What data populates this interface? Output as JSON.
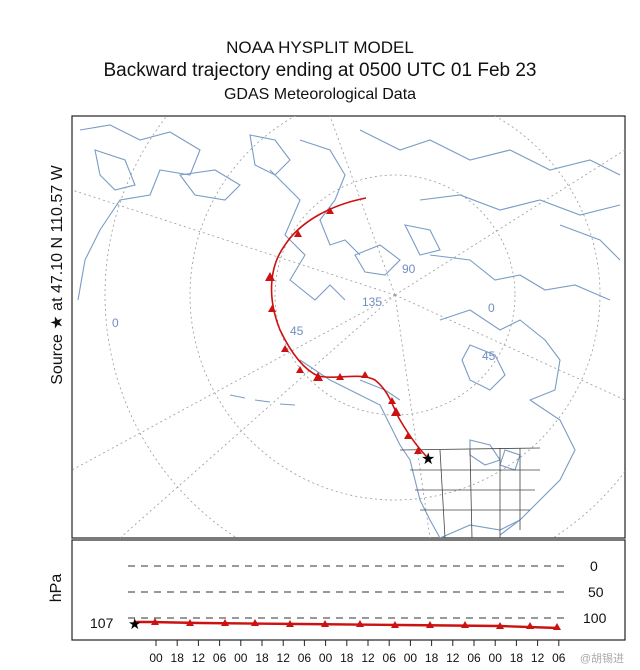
{
  "header": {
    "model": "NOAA HYSPLIT MODEL",
    "subtitle": "Backward trajectory ending at 0500 UTC 01 Feb 23",
    "data_source": "GDAS Meteorological Data"
  },
  "source": {
    "label": "Source ★ at   47.10 N  110.57 W",
    "lat": 47.1,
    "lon": -110.57
  },
  "map": {
    "grid_labels": [
      "0",
      "45",
      "90",
      "135",
      "0",
      "45"
    ],
    "coast_color": "#7a9cc6",
    "trajectory_color": "#cc1111"
  },
  "vertical": {
    "axis_label": "hPa",
    "levels": [
      "0",
      "50",
      "100"
    ],
    "start_value": "107",
    "time_ticks": [
      "00",
      "18",
      "12",
      "06",
      "00",
      "18",
      "12",
      "06",
      "00",
      "18",
      "12",
      "06",
      "00",
      "18",
      "12",
      "06",
      "00",
      "18",
      "12",
      "06"
    ]
  },
  "watermark": "@胡锡进"
}
